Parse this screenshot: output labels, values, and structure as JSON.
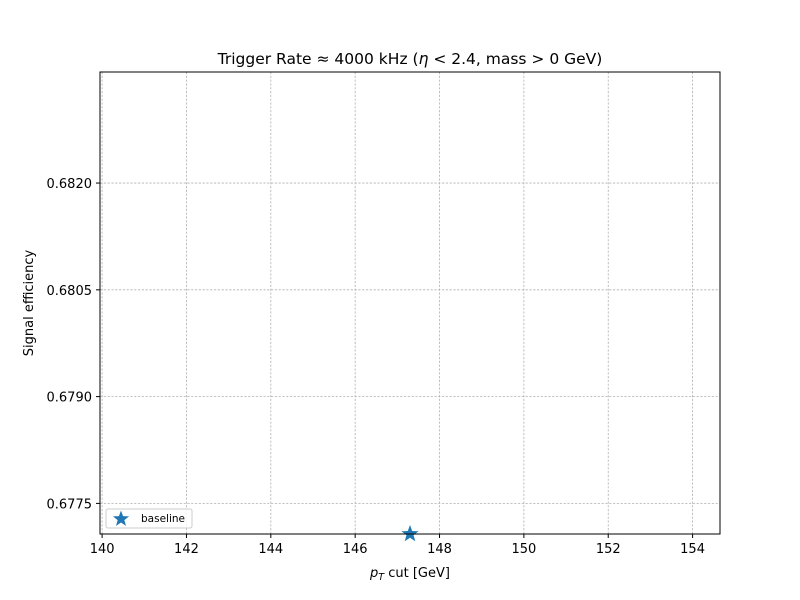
{
  "chart_data": {
    "type": "scatter",
    "title_prefix": "Trigger Rate ≈ 4000 kHz  (",
    "title_eta": "η",
    "title_suffix": " < 2.4, mass > 0 GeV)",
    "xlabel_symbol": "p",
    "xlabel_subscript": "T",
    "xlabel_suffix": " cut  [GeV]",
    "ylabel": "Signal efficiency",
    "xlim": [
      139.95,
      154.65
    ],
    "ylim": [
      0.67707,
      0.68356
    ],
    "xticks": [
      140,
      142,
      144,
      146,
      148,
      150,
      152,
      154
    ],
    "xtick_labels": [
      "140",
      "142",
      "144",
      "146",
      "148",
      "150",
      "152",
      "154"
    ],
    "yticks": [
      0.6775,
      0.679,
      0.6805,
      0.682
    ],
    "ytick_labels": [
      "0.6775",
      "0.6790",
      "0.6805",
      "0.6820"
    ],
    "grid": true,
    "legend_position": "lower-left",
    "series": [
      {
        "name": "baseline",
        "marker": "star",
        "color": "#1f77b4",
        "points": [
          {
            "x": 147.3,
            "y": 0.67707
          }
        ]
      }
    ]
  }
}
